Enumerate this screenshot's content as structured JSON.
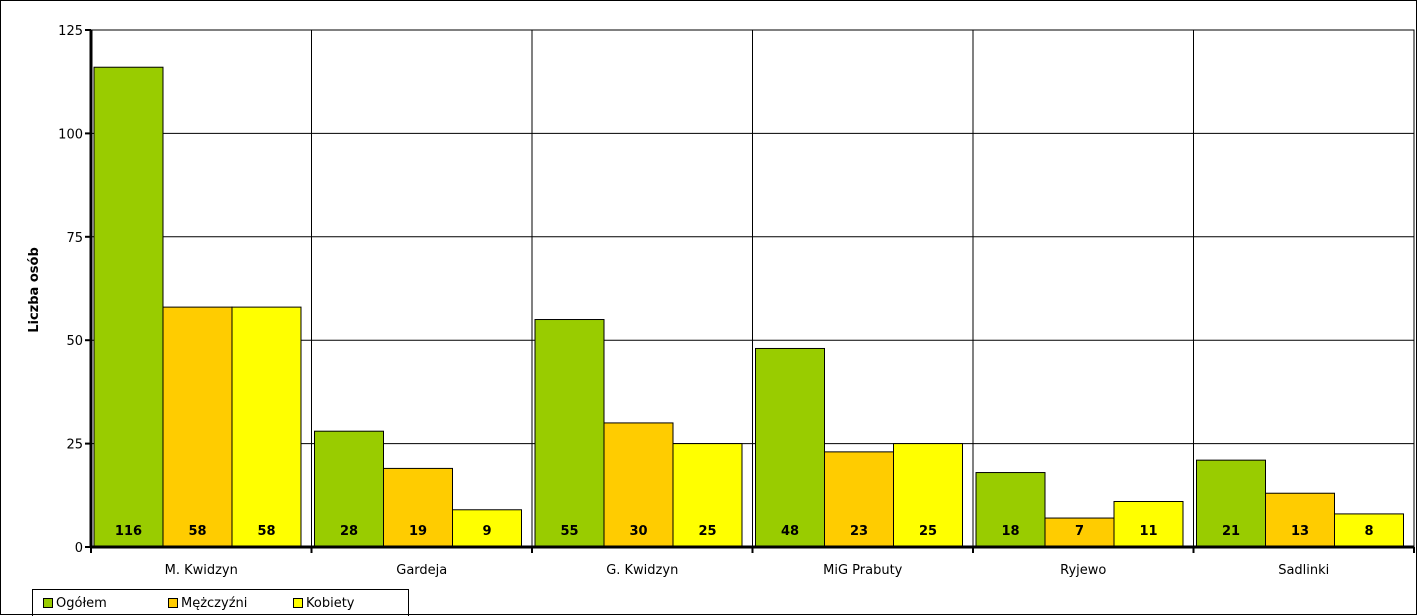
{
  "chart_data": {
    "type": "bar",
    "ylabel": "Liczba osób",
    "xlabel": "",
    "ylim": [
      0,
      125
    ],
    "yticks": [
      0,
      25,
      50,
      75,
      100,
      125
    ],
    "grid": true,
    "legend_position": "bottom-left",
    "categories": [
      "M. Kwidzyn",
      "Gardeja",
      "G. Kwidzyn",
      "MiG Prabuty",
      "Ryjewo",
      "Sadlinki"
    ],
    "series": [
      {
        "name": "Ogółem",
        "color": "#99cc00",
        "values": [
          116,
          28,
          55,
          48,
          18,
          21
        ]
      },
      {
        "name": "Mężczyźni",
        "color": "#ffcc00",
        "values": [
          58,
          19,
          30,
          23,
          7,
          13
        ]
      },
      {
        "name": "Kobiety",
        "color": "#ffff00",
        "values": [
          58,
          9,
          25,
          25,
          11,
          8
        ]
      }
    ]
  }
}
